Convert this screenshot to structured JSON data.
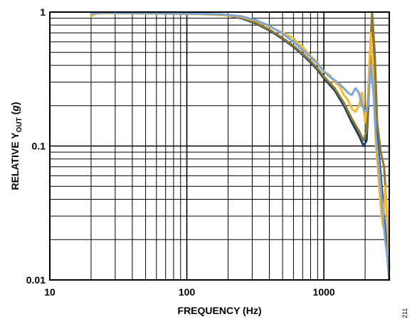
{
  "chart_data": {
    "type": "line",
    "title": "",
    "xlabel": "FREQUENCY (Hz)",
    "ylabel": {
      "pre": "RELATIVE Y",
      "sub": "OUT",
      "post": " (",
      "unit": "g",
      "end": ")"
    },
    "xscale": "log",
    "yscale": "log",
    "xlim": [
      10,
      3000
    ],
    "ylim": [
      0.01,
      1
    ],
    "grid": true,
    "legend": "none",
    "x_ticks": [
      {
        "value": 10,
        "label": "10"
      },
      {
        "value": 100,
        "label": "100"
      },
      {
        "value": 1000,
        "label": "1000"
      }
    ],
    "y_ticks": [
      {
        "value": 1,
        "label": "1"
      },
      {
        "value": 0.1,
        "label": "0.1"
      },
      {
        "value": 0.01,
        "label": "0.01"
      }
    ],
    "figure_id": "211",
    "series": [
      {
        "color": "#1f3d6b",
        "points": [
          [
            20,
            0.98
          ],
          [
            30,
            0.985
          ],
          [
            50,
            0.98
          ],
          [
            80,
            0.975
          ],
          [
            120,
            0.97
          ],
          [
            180,
            0.96
          ],
          [
            250,
            0.9
          ],
          [
            320,
            0.82
          ],
          [
            400,
            0.73
          ],
          [
            500,
            0.63
          ],
          [
            600,
            0.55
          ],
          [
            700,
            0.48
          ],
          [
            800,
            0.42
          ],
          [
            900,
            0.37
          ],
          [
            1000,
            0.32
          ],
          [
            1200,
            0.26
          ],
          [
            1400,
            0.2
          ],
          [
            1600,
            0.15
          ],
          [
            1800,
            0.12
          ],
          [
            1950,
            0.1
          ],
          [
            2050,
            0.11
          ],
          [
            2150,
            0.3
          ],
          [
            2250,
            0.95
          ],
          [
            2350,
            0.45
          ],
          [
            2450,
            0.12
          ],
          [
            2600,
            0.06
          ],
          [
            2750,
            0.03
          ],
          [
            2900,
            0.015
          ],
          [
            3000,
            0.01
          ]
        ]
      },
      {
        "color": "#8c7a2e",
        "points": [
          [
            20,
            0.98
          ],
          [
            30,
            0.985
          ],
          [
            50,
            0.98
          ],
          [
            80,
            0.975
          ],
          [
            120,
            0.97
          ],
          [
            180,
            0.96
          ],
          [
            250,
            0.91
          ],
          [
            320,
            0.83
          ],
          [
            400,
            0.74
          ],
          [
            500,
            0.64
          ],
          [
            600,
            0.56
          ],
          [
            700,
            0.49
          ],
          [
            800,
            0.43
          ],
          [
            900,
            0.38
          ],
          [
            1000,
            0.33
          ],
          [
            1200,
            0.27
          ],
          [
            1400,
            0.21
          ],
          [
            1600,
            0.16
          ],
          [
            1800,
            0.13
          ],
          [
            1950,
            0.11
          ],
          [
            2050,
            0.13
          ],
          [
            2150,
            0.4
          ],
          [
            2250,
            1.0
          ],
          [
            2350,
            0.5
          ],
          [
            2450,
            0.15
          ],
          [
            2600,
            0.09
          ],
          [
            2750,
            0.07
          ],
          [
            2850,
            0.04
          ],
          [
            3000,
            0.012
          ]
        ]
      },
      {
        "color": "#f5b935",
        "points": [
          [
            20,
            0.93
          ],
          [
            22,
            0.98
          ],
          [
            30,
            0.98
          ],
          [
            50,
            0.975
          ],
          [
            80,
            0.97
          ],
          [
            120,
            0.965
          ],
          [
            180,
            0.95
          ],
          [
            250,
            0.92
          ],
          [
            320,
            0.86
          ],
          [
            400,
            0.78
          ],
          [
            500,
            0.7
          ],
          [
            600,
            0.64
          ],
          [
            650,
            0.58
          ],
          [
            700,
            0.55
          ],
          [
            800,
            0.47
          ],
          [
            900,
            0.42
          ],
          [
            1000,
            0.36
          ],
          [
            1100,
            0.34
          ],
          [
            1200,
            0.3
          ],
          [
            1300,
            0.28
          ],
          [
            1400,
            0.24
          ],
          [
            1500,
            0.22
          ],
          [
            1600,
            0.19
          ],
          [
            1700,
            0.18
          ],
          [
            1800,
            0.2
          ],
          [
            1900,
            0.25
          ],
          [
            2000,
            0.15
          ],
          [
            2100,
            0.25
          ],
          [
            2200,
            0.7
          ],
          [
            2300,
            0.3
          ],
          [
            2400,
            0.1
          ],
          [
            2500,
            0.06
          ],
          [
            2600,
            0.035
          ],
          [
            2700,
            0.025
          ],
          [
            2800,
            0.05
          ],
          [
            2900,
            0.03
          ],
          [
            3000,
            0.012
          ]
        ]
      },
      {
        "color": "#7fa6d4",
        "points": [
          [
            20,
            0.97
          ],
          [
            25,
            0.99
          ],
          [
            30,
            0.985
          ],
          [
            50,
            0.98
          ],
          [
            80,
            0.975
          ],
          [
            120,
            0.97
          ],
          [
            180,
            0.96
          ],
          [
            250,
            0.93
          ],
          [
            320,
            0.87
          ],
          [
            400,
            0.79
          ],
          [
            500,
            0.69
          ],
          [
            600,
            0.6
          ],
          [
            700,
            0.52
          ],
          [
            800,
            0.46
          ],
          [
            900,
            0.41
          ],
          [
            1000,
            0.36
          ],
          [
            1100,
            0.33
          ],
          [
            1200,
            0.31
          ],
          [
            1300,
            0.29
          ],
          [
            1400,
            0.27
          ],
          [
            1500,
            0.25
          ],
          [
            1600,
            0.24
          ],
          [
            1700,
            0.27
          ],
          [
            1800,
            0.25
          ],
          [
            1900,
            0.2
          ],
          [
            2000,
            0.18
          ],
          [
            2100,
            0.2
          ],
          [
            2200,
            0.4
          ],
          [
            2300,
            0.25
          ],
          [
            2400,
            0.12
          ],
          [
            2500,
            0.08
          ],
          [
            2600,
            0.05
          ],
          [
            2700,
            0.03
          ],
          [
            2800,
            0.02
          ],
          [
            2900,
            0.015
          ],
          [
            3000,
            0.01
          ]
        ]
      }
    ]
  }
}
